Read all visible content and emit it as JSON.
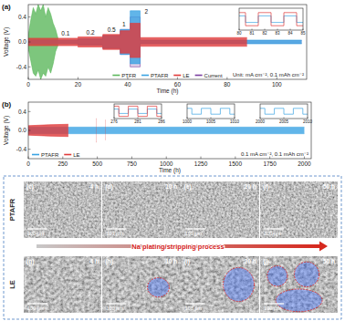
{
  "chart_data": [
    {
      "type": "band",
      "title": "(a)",
      "x_label": "Time (h)",
      "y_label": "Voltage (V)",
      "xlim": [
        0,
        112
      ],
      "xticks": [
        0,
        20,
        40,
        60,
        80,
        100
      ],
      "ylim": [
        -0.6,
        0.6
      ],
      "yticks": [
        -0.4,
        {
          "value": 0,
          "label": "0.0"
        },
        0.4
      ],
      "y2lim": [
        -3,
        3
      ],
      "y2ticks": [],
      "legend": "lower center",
      "series": [
        {
          "name": "PTFR",
          "color": "#5cb85c",
          "x": [
            0,
            1,
            2,
            3,
            4,
            5,
            6,
            7,
            8,
            9,
            10,
            11,
            12
          ],
          "values": [
            0.1,
            0.35,
            0.55,
            0.45,
            0.6,
            0.5,
            0.6,
            0.4,
            0.55,
            0.45,
            0.3,
            0.2,
            0.05
          ],
          "lower": [
            -0.1,
            -0.3,
            -0.5,
            -0.55,
            -0.45,
            -0.6,
            -0.5,
            -0.55,
            -0.4,
            -0.5,
            -0.35,
            -0.15,
            -0.05
          ]
        },
        {
          "name": "PTAFR",
          "color": "#3aa3e3",
          "x": [
            0,
            20,
            20,
            30,
            30,
            37,
            37,
            41,
            41,
            45,
            45,
            110
          ],
          "values": [
            0.03,
            0.03,
            0.05,
            0.05,
            0.1,
            0.1,
            0.2,
            0.2,
            0.5,
            0.5,
            0.03,
            0.03
          ],
          "lower": [
            -0.03,
            -0.03,
            -0.05,
            -0.05,
            -0.1,
            -0.1,
            -0.2,
            -0.2,
            -0.35,
            -0.35,
            -0.03,
            -0.03
          ]
        },
        {
          "name": "LE",
          "color": "#e03a3a",
          "x": [
            0,
            20,
            20,
            30,
            30,
            37,
            37,
            41,
            41,
            45,
            45,
            88
          ],
          "values": [
            0.06,
            0.06,
            0.08,
            0.08,
            0.12,
            0.12,
            0.18,
            0.18,
            0.3,
            0.3,
            0.07,
            0.07
          ],
          "lower": [
            -0.06,
            -0.06,
            -0.08,
            -0.08,
            -0.12,
            -0.12,
            -0.18,
            -0.18,
            -0.25,
            -0.25,
            -0.07,
            -0.07
          ]
        },
        {
          "name": "Current",
          "color": "#7b3fa0",
          "axis": "y2",
          "x": [
            0,
            20,
            20,
            30,
            30,
            37,
            37,
            41,
            41,
            45,
            45,
            110
          ],
          "values": [
            0.1,
            0.1,
            0.2,
            0.2,
            0.5,
            0.5,
            1,
            1,
            2,
            2,
            0.1,
            0.1
          ],
          "lower": [
            -0.1,
            -0.1,
            -0.2,
            -0.2,
            -0.5,
            -0.5,
            -1,
            -1,
            -2,
            -2,
            -0.1,
            -0.1
          ]
        }
      ],
      "annotations": [
        {
          "text": "0.1",
          "x": 15,
          "y": 0.1
        },
        {
          "text": "0.2",
          "x": 25,
          "y": 0.12
        },
        {
          "text": "0.5",
          "x": 33.5,
          "y": 0.16
        },
        {
          "text": "1",
          "x": 38.5,
          "y": 0.25
        },
        {
          "text": "2",
          "x": 47.5,
          "y": 0.45
        },
        {
          "text": "Unit: mA cm⁻², 0.1 mAh cm⁻²"
        }
      ],
      "insets": [
        {
          "type": "line",
          "xlim": [
            80,
            85
          ],
          "xticks": [
            80,
            81,
            82,
            83,
            84,
            85
          ],
          "ylim": [
            -0.1,
            0.1
          ],
          "tick_labels": "x",
          "series": [
            {
              "color": "#3aa3e3",
              "x": [
                80,
                80.5,
                80.5,
                81.5,
                81.5,
                82.5,
                82.5,
                83.5,
                83.5,
                84.5,
                84.5,
                85
              ],
              "values": [
                0.03,
                0.03,
                -0.03,
                -0.03,
                0.03,
                0.03,
                -0.03,
                -0.03,
                0.03,
                0.03,
                -0.03,
                -0.03
              ]
            },
            {
              "color": "#e03a3a",
              "x": [
                80,
                80.5,
                80.5,
                81.5,
                81.5,
                82.5,
                82.5,
                83.5,
                83.5,
                84.5,
                84.5,
                85
              ],
              "values": [
                0.06,
                0.06,
                -0.06,
                -0.06,
                0.06,
                0.06,
                -0.06,
                -0.06,
                0.06,
                0.06,
                -0.06,
                -0.06
              ]
            }
          ]
        }
      ]
    },
    {
      "type": "band",
      "title": "(b)",
      "x_label": "Time (h)",
      "y_label": "Voltage (V)",
      "xlim": [
        0,
        2050
      ],
      "xticks": [
        0,
        250,
        500,
        750,
        1000,
        1250,
        1500,
        1750,
        2000
      ],
      "ylim": [
        -0.6,
        0.6
      ],
      "yticks": [
        -0.4,
        {
          "value": 0,
          "label": "0.0"
        },
        0.4
      ],
      "legend": "lower left",
      "series": [
        {
          "name": "PTAFR",
          "color": "#3aa3e3",
          "x": [
            0,
            2000
          ],
          "values": [
            0.07,
            0.07
          ],
          "lower": [
            -0.07,
            -0.07
          ]
        },
        {
          "name": "LE",
          "color": "#e03a3a",
          "x": [
            0,
            150,
            290,
            300,
            490,
            492,
            500,
            560,
            562
          ],
          "values": [
            0.1,
            0.12,
            0.13,
            null,
            0.25,
            0.25,
            null,
            0.22,
            0.22
          ],
          "lower": [
            -0.1,
            -0.12,
            -0.13,
            null,
            -0.25,
            -0.25,
            null,
            -0.2,
            -0.2
          ]
        }
      ],
      "annotations": [
        {
          "text": "0.1 mA cm⁻², 0.1 mAh cm⁻²"
        }
      ],
      "insets": [
        {
          "type": "line",
          "xlim": [
            276,
            286
          ],
          "xticks": [
            276,
            281,
            286
          ],
          "ylim": [
            -0.1,
            0.1
          ],
          "tick_labels": "x",
          "series": [
            {
              "color": "#3aa3e3",
              "x": [
                276,
                277,
                277,
                279,
                279,
                281,
                281,
                283,
                283,
                285,
                285,
                286
              ],
              "values": [
                0.03,
                0.03,
                -0.03,
                -0.03,
                0.03,
                0.03,
                -0.03,
                -0.03,
                0.03,
                0.03,
                -0.03,
                -0.03
              ]
            },
            {
              "color": "#e03a3a",
              "x": [
                276,
                277,
                277,
                279,
                279,
                281,
                281,
                283,
                283,
                285,
                285,
                286
              ],
              "values": [
                0.07,
                0.07,
                -0.07,
                -0.07,
                0.07,
                0.07,
                -0.07,
                -0.07,
                0.07,
                0.07,
                -0.07,
                -0.07
              ]
            }
          ]
        },
        {
          "type": "line",
          "xlim": [
            1000,
            1010
          ],
          "xticks": [
            1000,
            1005,
            1010
          ],
          "ylim": [
            -0.1,
            0.1
          ],
          "tick_labels": "x",
          "series": [
            {
              "color": "#3aa3e3",
              "x": [
                1000,
                1001,
                1001,
                1003,
                1003,
                1005,
                1005,
                1007,
                1007,
                1009,
                1009,
                1010
              ],
              "values": [
                0.04,
                0.04,
                -0.04,
                -0.04,
                0.04,
                0.04,
                -0.04,
                -0.04,
                0.04,
                0.04,
                -0.04,
                -0.04
              ]
            }
          ]
        },
        {
          "type": "line",
          "xlim": [
            2000,
            2010
          ],
          "xticks": [
            2000,
            2005,
            2010
          ],
          "ylim": [
            -0.1,
            0.1
          ],
          "tick_labels": "x",
          "series": [
            {
              "color": "#3aa3e3",
              "x": [
                2000,
                2001,
                2001,
                2003,
                2003,
                2005,
                2005,
                2007,
                2007,
                2009,
                2009,
                2010
              ],
              "values": [
                0.04,
                0.04,
                -0.04,
                -0.04,
                0.04,
                0.04,
                -0.04,
                -0.04,
                0.04,
                0.04,
                -0.04,
                -0.04
              ]
            }
          ]
        }
      ]
    }
  ],
  "sem": {
    "arrow_text": "Na plating/stripping process",
    "rows": [
      {
        "label": "PTAFR",
        "panels": [
          {
            "label": "(c)",
            "time": "4 h",
            "scale": "100 µm"
          },
          {
            "label": "(d)",
            "time": "10 h",
            "scale": "100 µm"
          },
          {
            "label": "(e)",
            "time": "20 h",
            "scale": "100 µm"
          },
          {
            "label": "(f)",
            "time": "50 h",
            "scale": "100 µm"
          }
        ]
      },
      {
        "label": "LE",
        "panels": [
          {
            "label": "(g)",
            "time": "4 h",
            "scale": "100 µm"
          },
          {
            "label": "(h)",
            "time": "10 h",
            "scale": "100 µm"
          },
          {
            "label": "(i)",
            "time": "20 h",
            "scale": "100 µm"
          },
          {
            "label": "(j)",
            "time": "50 h",
            "scale": "100 µm"
          }
        ]
      }
    ]
  }
}
